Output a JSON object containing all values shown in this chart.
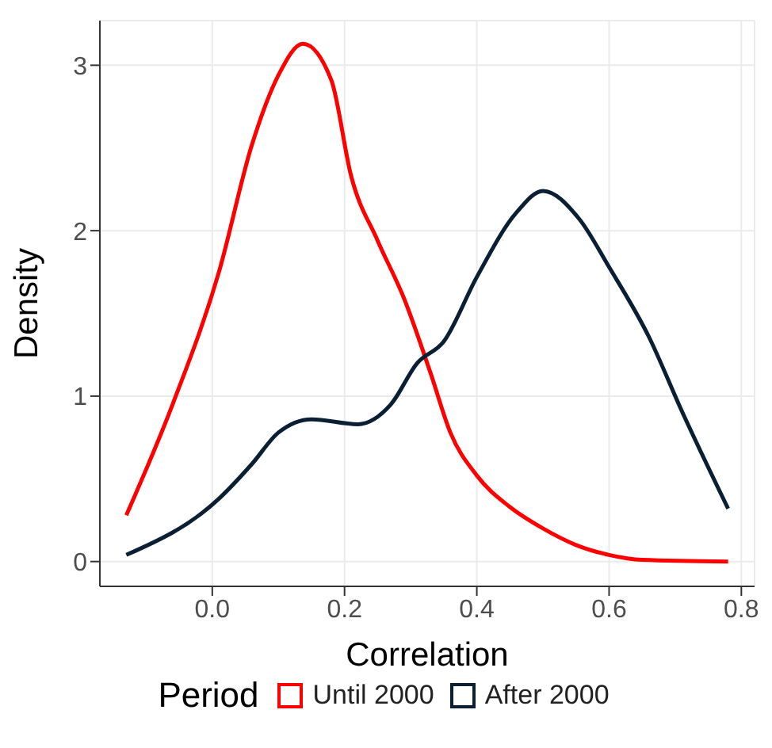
{
  "chart_data": {
    "type": "line",
    "xlabel": "Correlation",
    "ylabel": "Density",
    "legend_title": "Period",
    "legend": "bottom",
    "grid": true,
    "marker": "none",
    "line_style": "solid",
    "xlim": [
      -0.17,
      0.82
    ],
    "xticks": [
      {
        "value": 0,
        "label": "0.0"
      },
      0.2,
      0.4,
      0.6,
      0.8
    ],
    "ylim": [
      -0.15,
      3.27
    ],
    "yticks": [
      0,
      1,
      2,
      3
    ],
    "series": [
      {
        "name": "Until 2000",
        "color": "#ff0000",
        "x": [
          -0.13,
          -0.06,
          0.01,
          0.06,
          0.1,
          0.137,
          0.18,
          0.21,
          0.25,
          0.29,
          0.33,
          0.36,
          0.4,
          0.45,
          0.5,
          0.55,
          0.6,
          0.65,
          0.78
        ],
        "values": [
          0.28,
          0.95,
          1.75,
          2.52,
          2.94,
          3.13,
          2.91,
          2.33,
          1.94,
          1.59,
          1.14,
          0.78,
          0.52,
          0.33,
          0.2,
          0.1,
          0.04,
          0.01,
          0.0
        ]
      },
      {
        "name": "After 2000",
        "color": "#0a1f33",
        "x": [
          -0.13,
          0.01,
          0.06,
          0.1,
          0.15,
          0.22,
          0.27,
          0.31,
          0.35,
          0.4,
          0.46,
          0.5,
          0.555,
          0.6,
          0.66,
          0.71,
          0.78
        ],
        "values": [
          0.04,
          0.38,
          0.59,
          0.78,
          0.86,
          0.83,
          0.95,
          1.2,
          1.33,
          1.72,
          2.11,
          2.24,
          2.07,
          1.78,
          1.36,
          0.91,
          0.32
        ]
      }
    ]
  }
}
